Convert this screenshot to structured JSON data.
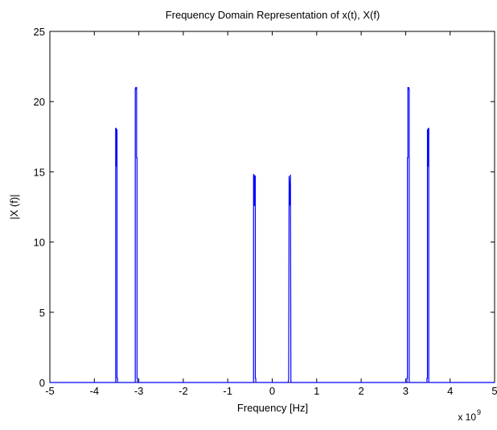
{
  "chart_data": {
    "type": "line",
    "title": "Frequency Domain Representation of x(t), X(f)",
    "xlabel": "Frequency [Hz]",
    "ylabel": "|X (f)|",
    "x_exponent_label": "x 10",
    "x_exponent_power": "9",
    "xlim": [
      -5,
      5
    ],
    "ylim": [
      0,
      25
    ],
    "xticks": [
      -5,
      -4,
      -3,
      -2,
      -1,
      0,
      1,
      2,
      3,
      4,
      5
    ],
    "yticks": [
      0,
      5,
      10,
      15,
      20,
      25
    ],
    "grid": false,
    "line_color": "#0000ff",
    "series": [
      {
        "x": [
          -5,
          -3.52,
          -3.52,
          -3.51,
          -3.51,
          -3.5,
          -3.5,
          -3.49,
          -3.49,
          -3.48,
          -3.48,
          -3.08,
          -3.08,
          -3.07,
          -3.07,
          -3.05,
          -3.05,
          -3.04,
          -3.04,
          -3.03,
          -3.03,
          -0.42,
          -0.42,
          -0.41,
          -0.41,
          -0.4,
          -0.4,
          -0.39,
          -0.39,
          -0.38,
          -0.38,
          -0.37,
          -0.37,
          -0.36,
          -0.36,
          0.36,
          0.36,
          0.37,
          0.37,
          0.38,
          0.38,
          0.39,
          0.39,
          0.4,
          0.4,
          0.41,
          0.41,
          0.42,
          0.42,
          3.03,
          3.03,
          3.04,
          3.04,
          3.05,
          3.05,
          3.07,
          3.07,
          3.08,
          3.08,
          3.48,
          3.48,
          3.49,
          3.49,
          3.5,
          3.5,
          3.51,
          3.51,
          3.52,
          3.52,
          5
        ],
        "y": [
          0,
          0,
          18.1,
          18.1,
          15.4,
          15.4,
          18.0,
          18.0,
          0.3,
          0.3,
          0,
          0,
          20.9,
          20.9,
          21.0,
          21.0,
          16.0,
          16.0,
          0.3,
          0.3,
          0,
          0,
          14.8,
          14.8,
          12.6,
          12.6,
          13.3,
          13.3,
          14.7,
          14.7,
          0.3,
          0.3,
          0,
          0,
          0,
          0,
          0,
          0.3,
          0.3,
          14.7,
          14.7,
          13.3,
          13.3,
          12.6,
          12.6,
          14.8,
          14.8,
          0,
          0,
          0,
          0.3,
          0.3,
          16.0,
          16.0,
          21.0,
          21.0,
          20.9,
          20.9,
          0,
          0,
          0.3,
          0.3,
          18.0,
          18.0,
          15.4,
          15.4,
          18.1,
          18.1,
          0,
          0
        ]
      }
    ]
  }
}
